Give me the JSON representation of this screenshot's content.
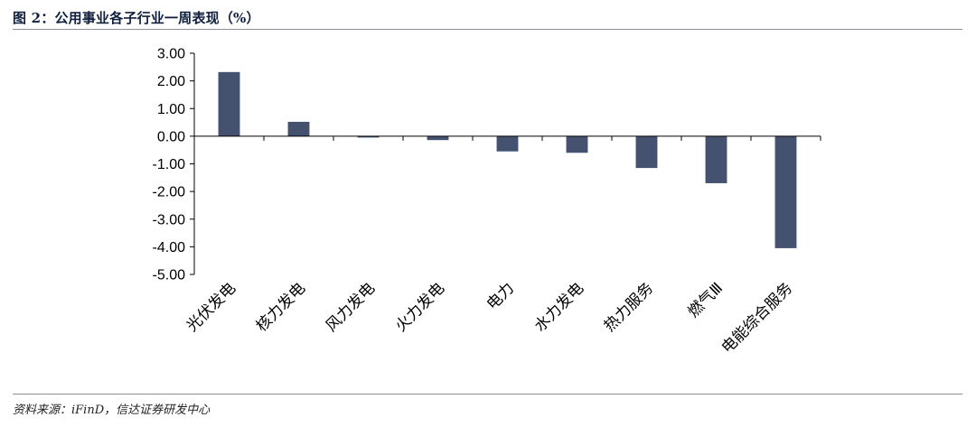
{
  "figure": {
    "title": "图 2：公用事业各子行业一周表现（%）",
    "source": "资料来源：iFinD，信达证券研发中心"
  },
  "chart_data": {
    "type": "bar",
    "categories": [
      "光伏发电",
      "核力发电",
      "风力发电",
      "火力发电",
      "电力",
      "水力发电",
      "热力服务",
      "燃气Ⅲ",
      "电能综合服务"
    ],
    "values": [
      2.32,
      0.52,
      -0.04,
      -0.14,
      -0.55,
      -0.6,
      -1.15,
      -1.7,
      -4.05
    ],
    "ylim": [
      -5,
      3
    ],
    "yticks": [
      3,
      2,
      1,
      0,
      -1,
      -2,
      -3,
      -4,
      -5
    ],
    "ytick_labels": [
      "3.00",
      "2.00",
      "1.00",
      "0.00",
      "-1.00",
      "-2.00",
      "-3.00",
      "-4.00",
      "-5.00"
    ],
    "bar_color": "#445270",
    "grid": false,
    "legend": "none"
  }
}
